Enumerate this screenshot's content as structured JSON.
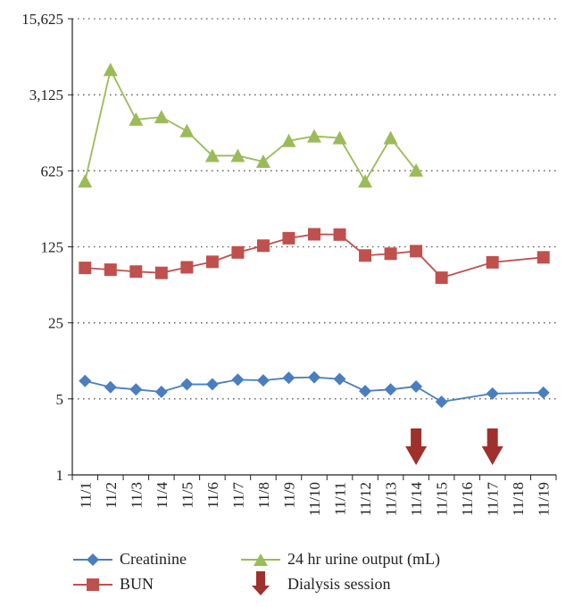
{
  "chart_data": {
    "type": "line",
    "yscale": "log",
    "title": "",
    "xlabel": "",
    "ylabel": "",
    "ylim": [
      1,
      15625
    ],
    "yticks": [
      1,
      5,
      25,
      125,
      625,
      3125,
      15625
    ],
    "ytick_labels": [
      "1",
      "5",
      "25",
      "125",
      "625",
      "3,125",
      "15,625"
    ],
    "grid": "horizontal-dotted",
    "categories": [
      "11/1",
      "11/2",
      "11/3",
      "11/4",
      "11/5",
      "11/6",
      "11/7",
      "11/8",
      "11/9",
      "11/10",
      "11/11",
      "11/12",
      "11/13",
      "11/14",
      "11/15",
      "11/16",
      "11/17",
      "11/18",
      "11/19"
    ],
    "series": [
      {
        "name": "Creatinine",
        "color": "#4a7ebf",
        "marker": "diamond",
        "values": [
          7.3,
          6.4,
          6.1,
          5.8,
          6.8,
          6.8,
          7.5,
          7.4,
          7.8,
          7.9,
          7.6,
          5.9,
          6.1,
          6.5,
          4.7,
          null,
          5.6,
          null,
          5.7
        ]
      },
      {
        "name": "BUN",
        "color": "#c0504d",
        "marker": "square",
        "values": [
          80,
          77,
          74,
          72,
          81,
          91,
          111,
          128,
          150,
          163,
          162,
          104,
          108,
          114,
          65,
          null,
          90,
          null,
          100
        ]
      },
      {
        "name": "24 hr urine output (mL)",
        "color": "#9bbb59",
        "marker": "triangle",
        "values": [
          500,
          5300,
          1850,
          1950,
          1450,
          860,
          860,
          760,
          1180,
          1300,
          1250,
          500,
          1250,
          630,
          null,
          null,
          null,
          null,
          null
        ]
      }
    ],
    "dialysis_sessions": [
      "11/14",
      "11/17"
    ],
    "dialysis_color": "#a0302c",
    "legend": {
      "placement": "bottom",
      "items": [
        "Creatinine",
        "BUN",
        "24 hr urine output (mL)",
        "Dialysis session"
      ]
    }
  }
}
